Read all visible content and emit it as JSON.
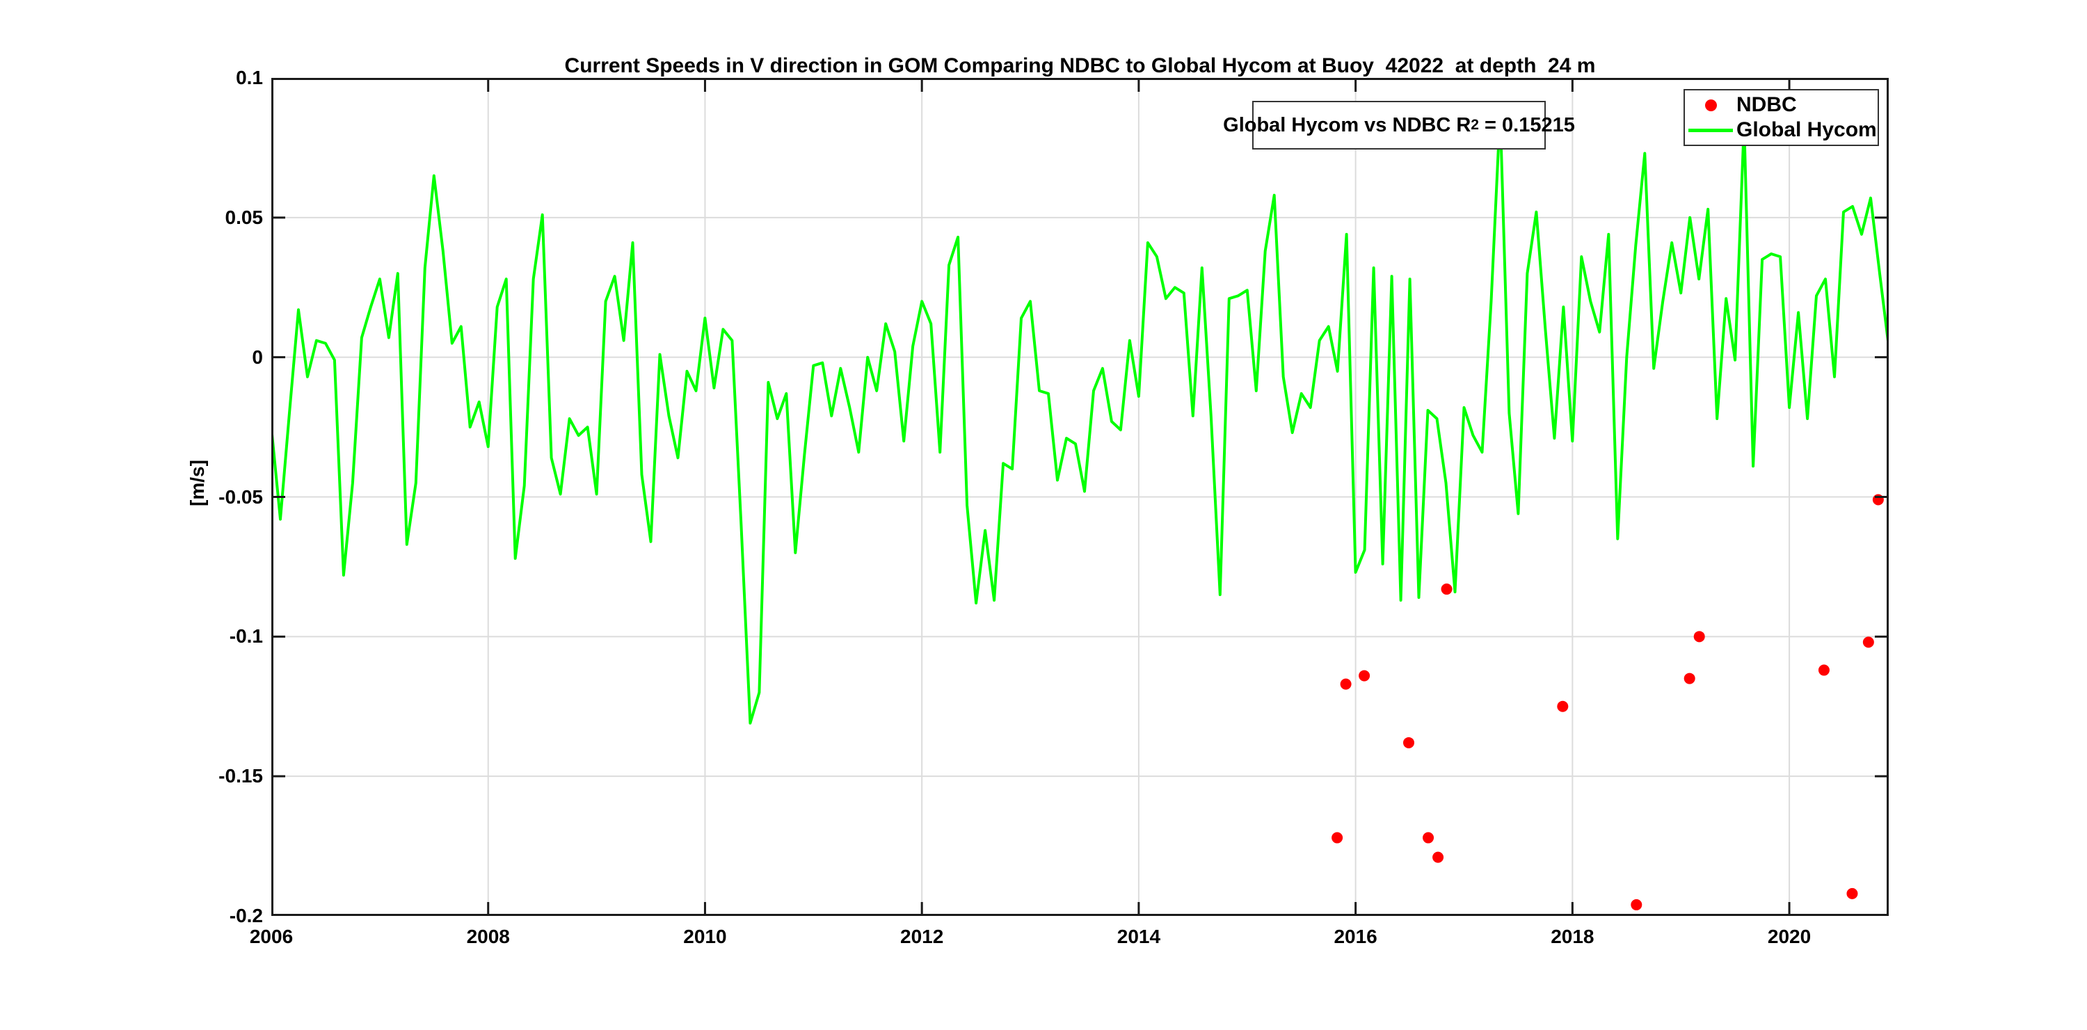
{
  "title": "Current Speeds in V direction in GOM Comparing NDBC to Global Hycom at Buoy  42022  at depth  24 m",
  "ylabel": "[m/s]",
  "annotation": {
    "prefix": "Global Hycom vs NDBC R",
    "sup": "2",
    "suffix": " = 0.15215"
  },
  "legend": {
    "items": [
      {
        "label": "NDBC",
        "marker": "dot",
        "color": "#ff0000"
      },
      {
        "label": "Global Hycom",
        "marker": "line",
        "color": "#00ff00"
      }
    ]
  },
  "colors": {
    "hycom_line": "#00ff00",
    "ndbc_marker": "#ff0000",
    "grid": "#dcdcdc",
    "axis": "#1a1a1a",
    "background": "#ffffff",
    "text": "#000000"
  },
  "chart_data": {
    "type": "line",
    "title": "Current Speeds in V direction in GOM Comparing NDBC to Global Hycom at Buoy  42022  at depth  24 m",
    "xlabel": "",
    "ylabel": "[m/s]",
    "xlim": [
      2006,
      2020.917
    ],
    "ylim": [
      -0.2,
      0.1
    ],
    "grid": true,
    "legend_position": "top-right",
    "xticks": [
      2006,
      2008,
      2010,
      2012,
      2014,
      2016,
      2018,
      2020
    ],
    "xtick_labels": [
      "2006",
      "2008",
      "2010",
      "2012",
      "2014",
      "2016",
      "2018",
      "2020"
    ],
    "yticks": [
      0.1,
      0.05,
      0,
      -0.05,
      -0.1,
      -0.15,
      -0.2
    ],
    "ytick_labels": [
      "0.1",
      "0.05",
      "0",
      "-0.05",
      "-0.1",
      "-0.15",
      "-0.2"
    ],
    "annotation_text": "Global Hycom vs NDBC R^2 = 0.15215",
    "r_squared": 0.15215,
    "series": [
      {
        "name": "Global Hycom",
        "type": "line",
        "color": "#00ff00",
        "line_width": 4,
        "x_start_year": 2006,
        "x_step_years": 0.0833333,
        "values": [
          -0.025,
          -0.058,
          -0.02,
          0.017,
          -0.007,
          0.006,
          0.005,
          -0.001,
          -0.078,
          -0.045,
          0.007,
          0.018,
          0.028,
          0.007,
          0.03,
          -0.067,
          -0.045,
          0.032,
          0.065,
          0.038,
          0.005,
          0.011,
          -0.025,
          -0.016,
          -0.032,
          0.018,
          0.028,
          -0.072,
          -0.046,
          0.028,
          0.051,
          -0.036,
          -0.049,
          -0.022,
          -0.028,
          -0.025,
          -0.049,
          0.02,
          0.029,
          0.006,
          0.041,
          -0.042,
          -0.066,
          0.001,
          -0.021,
          -0.036,
          -0.005,
          -0.012,
          0.014,
          -0.011,
          0.01,
          0.006,
          -0.06,
          -0.131,
          -0.12,
          -0.009,
          -0.022,
          -0.013,
          -0.07,
          -0.035,
          -0.003,
          -0.002,
          -0.021,
          -0.004,
          -0.018,
          -0.034,
          0.0,
          -0.012,
          0.012,
          0.002,
          -0.03,
          0.004,
          0.02,
          0.012,
          -0.034,
          0.033,
          0.043,
          -0.053,
          -0.088,
          -0.062,
          -0.087,
          -0.038,
          -0.04,
          0.014,
          0.02,
          -0.012,
          -0.013,
          -0.044,
          -0.029,
          -0.031,
          -0.048,
          -0.012,
          -0.004,
          -0.023,
          -0.026,
          0.006,
          -0.014,
          0.041,
          0.036,
          0.021,
          0.025,
          0.023,
          -0.021,
          0.032,
          -0.021,
          -0.085,
          0.021,
          0.022,
          0.024,
          -0.012,
          0.038,
          0.058,
          -0.007,
          -0.027,
          -0.013,
          -0.018,
          0.006,
          0.011,
          -0.005,
          0.044,
          -0.077,
          -0.069,
          0.032,
          -0.074,
          0.029,
          -0.087,
          0.028,
          -0.086,
          -0.019,
          -0.022,
          -0.045,
          -0.084,
          -0.018,
          -0.028,
          -0.034,
          0.02,
          0.088,
          -0.02,
          -0.056,
          0.03,
          0.052,
          0.01,
          -0.029,
          0.018,
          -0.03,
          0.036,
          0.02,
          0.009,
          0.044,
          -0.065,
          0.0,
          0.04,
          0.073,
          -0.004,
          0.02,
          0.041,
          0.023,
          0.05,
          0.028,
          0.053,
          -0.022,
          0.021,
          -0.001,
          0.084,
          -0.039,
          0.035,
          0.037,
          0.036,
          -0.018,
          0.016,
          -0.022,
          0.022,
          0.028,
          -0.007,
          0.052,
          0.054,
          0.044,
          0.057,
          0.03,
          0.004
        ]
      },
      {
        "name": "NDBC",
        "type": "scatter",
        "color": "#ff0000",
        "marker": "dot",
        "marker_radius": 8,
        "points": [
          [
            2015.83,
            -0.172
          ],
          [
            2015.91,
            -0.117
          ],
          [
            2016.08,
            -0.114
          ],
          [
            2016.49,
            -0.138
          ],
          [
            2016.67,
            -0.172
          ],
          [
            2016.76,
            -0.179
          ],
          [
            2016.84,
            -0.083
          ],
          [
            2017.91,
            -0.125
          ],
          [
            2018.59,
            -0.196
          ],
          [
            2019.08,
            -0.115
          ],
          [
            2019.17,
            -0.1
          ],
          [
            2020.32,
            -0.112
          ],
          [
            2020.58,
            -0.192
          ],
          [
            2020.73,
            -0.102
          ],
          [
            2020.82,
            -0.051
          ]
        ]
      }
    ]
  }
}
